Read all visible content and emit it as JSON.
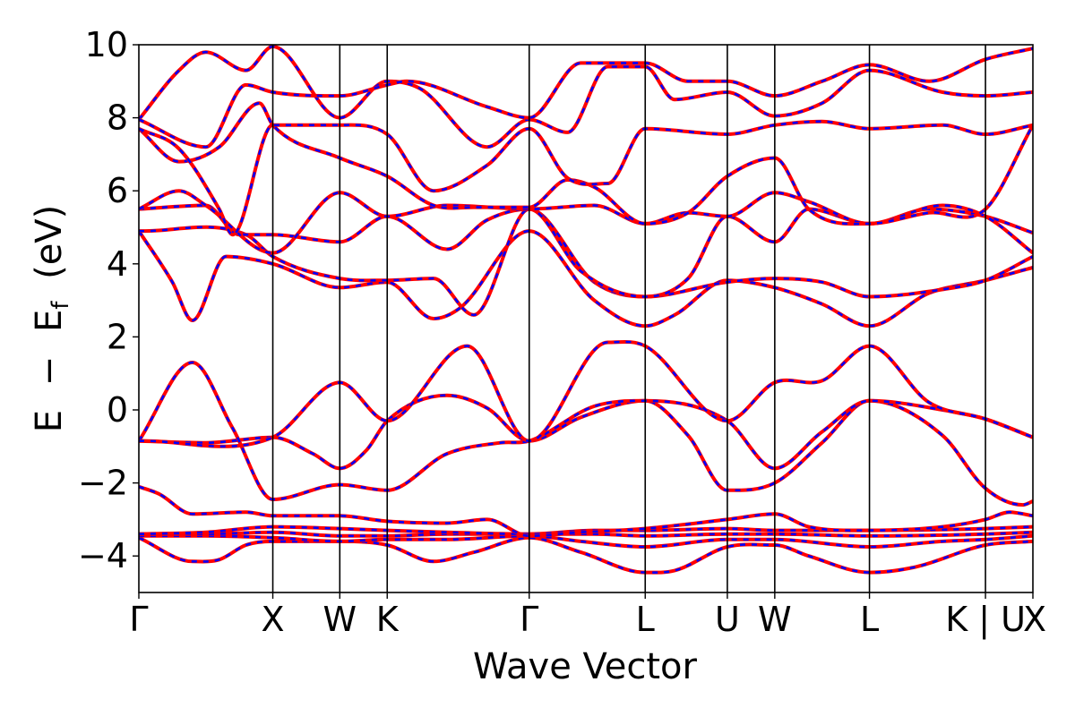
{
  "chart_data": {
    "type": "line",
    "title": "",
    "xlabel": "Wave Vector",
    "ylabel": {
      "E": "E",
      "minus": "−",
      "Ebase": "E",
      "Esub": "f",
      "unit": "(eV)"
    },
    "ylim": [
      -5,
      10
    ],
    "yticks": [
      {
        "v": -4,
        "label": "−4"
      },
      {
        "v": -2,
        "label": "−2"
      },
      {
        "v": 0,
        "label": "0"
      },
      {
        "v": 2,
        "label": "2"
      },
      {
        "v": 4,
        "label": "4"
      },
      {
        "v": 6,
        "label": "6"
      },
      {
        "v": 8,
        "label": "8"
      },
      {
        "v": 10,
        "label": "10"
      }
    ],
    "kpath": [
      {
        "k": 0.0,
        "label": "Γ"
      },
      {
        "k": 1.0,
        "label": "X"
      },
      {
        "k": 1.5,
        "label": "W"
      },
      {
        "k": 1.854,
        "label": "K"
      },
      {
        "k": 2.914,
        "label": "Γ"
      },
      {
        "k": 3.78,
        "label": "L"
      },
      {
        "k": 4.393,
        "label": "U"
      },
      {
        "k": 4.747,
        "label": "W"
      },
      {
        "k": 5.454,
        "label": "L"
      },
      {
        "k": 6.32,
        "label": "K | U"
      },
      {
        "k": 6.674,
        "label": "X"
      }
    ],
    "grid": false,
    "series_style": [
      {
        "color": "#ff0000",
        "dash": "solid"
      },
      {
        "color": "#0000ff",
        "dash": "dashed"
      }
    ],
    "bands": [
      [
        [
          0,
          -3.5
        ],
        [
          0.4,
          -4.15
        ],
        [
          0.6,
          -4.1
        ],
        [
          0.8,
          -3.7
        ],
        [
          1.0,
          -3.6
        ],
        [
          1.5,
          -3.6
        ],
        [
          1.854,
          -3.7
        ],
        [
          2.2,
          -4.15
        ],
        [
          2.5,
          -3.9
        ],
        [
          2.914,
          -3.5
        ],
        [
          3.3,
          -3.9
        ],
        [
          3.78,
          -4.45
        ],
        [
          4.0,
          -4.4
        ],
        [
          4.393,
          -3.75
        ],
        [
          4.747,
          -3.7
        ],
        [
          5.0,
          -4.0
        ],
        [
          5.454,
          -4.45
        ],
        [
          5.8,
          -4.3
        ],
        [
          6.32,
          -3.7
        ],
        [
          6.674,
          -3.6
        ]
      ],
      [
        [
          0,
          -3.45
        ],
        [
          0.5,
          -3.45
        ],
        [
          1.0,
          -3.5
        ],
        [
          1.5,
          -3.6
        ],
        [
          1.854,
          -3.55
        ],
        [
          2.3,
          -3.55
        ],
        [
          2.914,
          -3.45
        ],
        [
          3.3,
          -3.6
        ],
        [
          3.78,
          -3.75
        ],
        [
          4.393,
          -3.55
        ],
        [
          4.747,
          -3.55
        ],
        [
          5.454,
          -3.75
        ],
        [
          6.0,
          -3.6
        ],
        [
          6.32,
          -3.55
        ],
        [
          6.674,
          -3.45
        ]
      ],
      [
        [
          0,
          -3.4
        ],
        [
          0.5,
          -3.4
        ],
        [
          1.0,
          -3.35
        ],
        [
          1.5,
          -3.45
        ],
        [
          1.854,
          -3.45
        ],
        [
          2.3,
          -3.4
        ],
        [
          2.914,
          -3.4
        ],
        [
          3.4,
          -3.4
        ],
        [
          3.78,
          -3.45
        ],
        [
          4.393,
          -3.4
        ],
        [
          4.747,
          -3.4
        ],
        [
          5.454,
          -3.45
        ],
        [
          6.32,
          -3.4
        ],
        [
          6.674,
          -3.35
        ]
      ],
      [
        [
          0,
          -3.4
        ],
        [
          0.5,
          -3.35
        ],
        [
          1.0,
          -3.2
        ],
        [
          1.5,
          -3.25
        ],
        [
          1.854,
          -3.3
        ],
        [
          2.3,
          -3.35
        ],
        [
          2.914,
          -3.4
        ],
        [
          3.4,
          -3.3
        ],
        [
          3.78,
          -3.3
        ],
        [
          4.393,
          -3.25
        ],
        [
          4.747,
          -3.3
        ],
        [
          5.454,
          -3.3
        ],
        [
          6.32,
          -3.25
        ],
        [
          6.674,
          -3.2
        ]
      ],
      [
        [
          0,
          -2.1
        ],
        [
          0.15,
          -2.3
        ],
        [
          0.4,
          -2.85
        ],
        [
          0.8,
          -2.8
        ],
        [
          1.0,
          -2.9
        ],
        [
          1.5,
          -2.9
        ],
        [
          1.854,
          -3.05
        ],
        [
          2.3,
          -3.1
        ],
        [
          2.6,
          -3.0
        ],
        [
          2.914,
          -3.45
        ],
        [
          3.3,
          -3.35
        ],
        [
          3.78,
          -3.25
        ],
        [
          4.393,
          -3.0
        ],
        [
          4.747,
          -2.85
        ],
        [
          5.0,
          -3.2
        ],
        [
          5.454,
          -3.3
        ],
        [
          6.0,
          -3.2
        ],
        [
          6.32,
          -3.0
        ],
        [
          6.5,
          -2.8
        ],
        [
          6.674,
          -2.9
        ]
      ],
      [
        [
          0,
          -0.85
        ],
        [
          0.5,
          -0.9
        ],
        [
          1.0,
          -0.75
        ],
        [
          1.3,
          -1.2
        ],
        [
          1.5,
          -1.6
        ],
        [
          1.7,
          -1.1
        ],
        [
          1.854,
          -0.3
        ],
        [
          2.3,
          0.4
        ],
        [
          2.6,
          0.05
        ],
        [
          2.914,
          -0.85
        ],
        [
          3.3,
          -0.2
        ],
        [
          3.78,
          0.25
        ],
        [
          4.1,
          -0.7
        ],
        [
          4.393,
          -2.2
        ],
        [
          4.747,
          -2.0
        ],
        [
          5.1,
          -0.9
        ],
        [
          5.454,
          0.25
        ],
        [
          6.0,
          -0.7
        ],
        [
          6.32,
          -2.15
        ],
        [
          6.6,
          -2.6
        ],
        [
          6.674,
          -2.5
        ]
      ],
      [
        [
          0,
          -0.85
        ],
        [
          0.4,
          1.3
        ],
        [
          0.7,
          -0.5
        ],
        [
          1.0,
          -2.45
        ],
        [
          1.5,
          -2.05
        ],
        [
          1.854,
          -2.2
        ],
        [
          2.3,
          -1.2
        ],
        [
          2.7,
          -0.9
        ],
        [
          2.914,
          -0.85
        ],
        [
          3.4,
          0.1
        ],
        [
          3.78,
          0.25
        ],
        [
          4.393,
          -0.3
        ],
        [
          4.747,
          -1.6
        ],
        [
          5.1,
          -0.6
        ],
        [
          5.454,
          0.25
        ],
        [
          6.0,
          0.0
        ],
        [
          6.32,
          -0.25
        ],
        [
          6.674,
          -0.75
        ]
      ],
      [
        [
          0,
          -0.85
        ],
        [
          1.0,
          -0.75
        ],
        [
          1.5,
          0.75
        ],
        [
          1.854,
          -0.3
        ],
        [
          2.45,
          1.75
        ],
        [
          2.914,
          -0.85
        ],
        [
          3.5,
          1.85
        ],
        [
          3.78,
          1.75
        ],
        [
          4.393,
          -0.3
        ],
        [
          4.747,
          0.75
        ],
        [
          5.1,
          0.8
        ],
        [
          5.454,
          1.75
        ],
        [
          5.9,
          0.2
        ],
        [
          6.32,
          -0.25
        ],
        [
          6.674,
          -0.75
        ]
      ],
      [
        [
          0,
          4.9
        ],
        [
          0.25,
          3.5
        ],
        [
          0.4,
          2.45
        ],
        [
          0.65,
          4.2
        ],
        [
          1.0,
          4.0
        ],
        [
          1.5,
          3.35
        ],
        [
          1.854,
          3.5
        ],
        [
          2.2,
          2.5
        ],
        [
          2.4,
          2.8
        ],
        [
          2.914,
          4.9
        ],
        [
          3.4,
          3.0
        ],
        [
          3.78,
          2.3
        ],
        [
          4.0,
          2.6
        ],
        [
          4.393,
          3.55
        ],
        [
          4.747,
          3.35
        ],
        [
          5.1,
          2.9
        ],
        [
          5.454,
          2.3
        ],
        [
          5.9,
          3.2
        ],
        [
          6.32,
          3.55
        ],
        [
          6.674,
          3.9
        ]
      ],
      [
        [
          0,
          4.9
        ],
        [
          0.8,
          4.8
        ],
        [
          1.0,
          4.2
        ],
        [
          1.5,
          3.6
        ],
        [
          1.854,
          3.55
        ],
        [
          2.2,
          3.6
        ],
        [
          2.5,
          2.6
        ],
        [
          2.914,
          5.5
        ],
        [
          3.4,
          3.5
        ],
        [
          3.78,
          3.1
        ],
        [
          4.393,
          3.5
        ],
        [
          4.747,
          3.6
        ],
        [
          5.1,
          3.5
        ],
        [
          5.454,
          3.1
        ],
        [
          6.0,
          3.3
        ],
        [
          6.32,
          3.55
        ],
        [
          6.674,
          4.2
        ]
      ],
      [
        [
          0,
          5.5
        ],
        [
          0.5,
          5.6
        ],
        [
          0.75,
          4.8
        ],
        [
          1.0,
          4.8
        ],
        [
          1.5,
          4.6
        ],
        [
          1.854,
          5.3
        ],
        [
          2.3,
          4.4
        ],
        [
          2.6,
          5.2
        ],
        [
          2.914,
          5.5
        ],
        [
          3.3,
          3.8
        ],
        [
          3.78,
          3.1
        ],
        [
          4.1,
          3.6
        ],
        [
          4.393,
          5.3
        ],
        [
          4.747,
          4.6
        ],
        [
          5.0,
          5.5
        ],
        [
          5.454,
          5.1
        ],
        [
          5.9,
          5.5
        ],
        [
          6.32,
          5.3
        ],
        [
          6.674,
          4.85
        ]
      ],
      [
        [
          0,
          5.5
        ],
        [
          0.3,
          6.0
        ],
        [
          0.5,
          5.6
        ],
        [
          1.0,
          4.3
        ],
        [
          1.5,
          5.95
        ],
        [
          1.854,
          5.3
        ],
        [
          2.3,
          5.6
        ],
        [
          2.914,
          5.5
        ],
        [
          3.4,
          5.6
        ],
        [
          3.78,
          5.1
        ],
        [
          4.1,
          5.4
        ],
        [
          4.393,
          5.3
        ],
        [
          4.747,
          5.95
        ],
        [
          5.0,
          5.7
        ],
        [
          5.454,
          5.1
        ],
        [
          6.0,
          5.6
        ],
        [
          6.32,
          5.3
        ],
        [
          6.674,
          4.3
        ]
      ],
      [
        [
          0,
          7.7
        ],
        [
          0.3,
          6.8
        ],
        [
          0.6,
          7.2
        ],
        [
          0.9,
          8.4
        ],
        [
          1.0,
          7.8
        ],
        [
          1.5,
          6.9
        ],
        [
          1.854,
          6.4
        ],
        [
          2.2,
          5.6
        ],
        [
          2.5,
          5.55
        ],
        [
          2.914,
          5.55
        ],
        [
          3.2,
          6.3
        ],
        [
          3.4,
          6.1
        ],
        [
          3.78,
          5.1
        ],
        [
          4.1,
          5.4
        ],
        [
          4.393,
          6.4
        ],
        [
          4.747,
          6.9
        ],
        [
          5.0,
          5.5
        ],
        [
          5.454,
          5.1
        ],
        [
          5.9,
          5.4
        ],
        [
          6.32,
          5.5
        ],
        [
          6.674,
          7.8
        ]
      ],
      [
        [
          0,
          7.7
        ],
        [
          0.3,
          7.15
        ],
        [
          0.6,
          5.5
        ],
        [
          0.7,
          4.8
        ],
        [
          1.0,
          7.8
        ],
        [
          1.5,
          7.8
        ],
        [
          1.854,
          7.55
        ],
        [
          2.2,
          6.0
        ],
        [
          2.6,
          6.7
        ],
        [
          2.914,
          7.7
        ],
        [
          3.2,
          6.35
        ],
        [
          3.5,
          6.2
        ],
        [
          3.78,
          7.7
        ],
        [
          4.393,
          7.55
        ],
        [
          4.747,
          7.8
        ],
        [
          5.1,
          7.9
        ],
        [
          5.454,
          7.7
        ],
        [
          6.0,
          7.8
        ],
        [
          6.32,
          7.55
        ],
        [
          6.674,
          7.8
        ]
      ],
      [
        [
          0,
          7.95
        ],
        [
          0.3,
          9.3
        ],
        [
          0.5,
          9.8
        ],
        [
          0.8,
          9.3
        ],
        [
          1.0,
          9.95
        ],
        [
          1.5,
          8.0
        ],
        [
          1.854,
          9.0
        ],
        [
          2.1,
          8.8
        ],
        [
          2.6,
          7.2
        ],
        [
          2.914,
          7.95
        ],
        [
          3.2,
          7.6
        ],
        [
          3.5,
          9.4
        ],
        [
          3.78,
          9.4
        ],
        [
          4.0,
          8.5
        ],
        [
          4.393,
          8.7
        ],
        [
          4.747,
          8.05
        ],
        [
          5.1,
          8.4
        ],
        [
          5.454,
          9.3
        ],
        [
          6.0,
          8.7
        ],
        [
          6.32,
          8.6
        ],
        [
          6.674,
          8.7
        ]
      ],
      [
        [
          0,
          7.95
        ],
        [
          0.5,
          7.2
        ],
        [
          0.8,
          8.9
        ],
        [
          1.0,
          8.7
        ],
        [
          1.5,
          8.6
        ],
        [
          1.854,
          8.9
        ],
        [
          2.0,
          9.0
        ],
        [
          2.6,
          8.3
        ],
        [
          2.914,
          8.0
        ],
        [
          3.3,
          9.5
        ],
        [
          3.78,
          9.5
        ],
        [
          4.1,
          9.0
        ],
        [
          4.393,
          9.0
        ],
        [
          4.747,
          8.6
        ],
        [
          5.1,
          9.0
        ],
        [
          5.454,
          9.45
        ],
        [
          5.9,
          9.0
        ],
        [
          6.32,
          9.6
        ],
        [
          6.674,
          9.9
        ]
      ]
    ]
  }
}
